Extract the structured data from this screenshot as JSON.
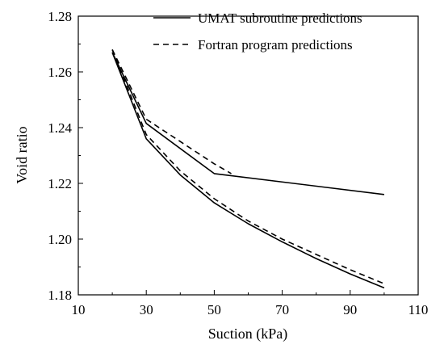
{
  "chart_data": {
    "type": "line",
    "title": "",
    "xlabel": "Suction (kPa)",
    "ylabel": "Void ratio",
    "xlim": [
      10,
      110
    ],
    "ylim": [
      1.18,
      1.28
    ],
    "xticks": [
      10,
      30,
      50,
      70,
      90,
      110
    ],
    "yticks": [
      1.18,
      1.2,
      1.22,
      1.24,
      1.26,
      1.28
    ],
    "xtick_labels": [
      "10",
      "30",
      "50",
      "70",
      "90",
      "110"
    ],
    "ytick_labels": [
      "1.18",
      "1.20",
      "1.22",
      "1.24",
      "1.26",
      "1.28"
    ],
    "grid": false,
    "legend_position": "top-right",
    "series": [
      {
        "name": "UMAT subroutine predictions",
        "style": "solid",
        "color": "#000000",
        "segments": [
          {
            "x": [
              20,
              30,
              50,
              100
            ],
            "y": [
              1.267,
              1.2415,
              1.2235,
              1.216
            ]
          },
          {
            "x": [
              20,
              30,
              40,
              50,
              60,
              70,
              80,
              90,
              100
            ],
            "y": [
              1.267,
              1.236,
              1.223,
              1.213,
              1.2055,
              1.199,
              1.193,
              1.1875,
              1.1825
            ]
          }
        ]
      },
      {
        "name": "Fortran program predictions",
        "style": "dashed",
        "color": "#000000",
        "segments": [
          {
            "x": [
              20,
              30,
              50,
              55
            ],
            "y": [
              1.268,
              1.243,
              1.227,
              1.2235
            ]
          },
          {
            "x": [
              20,
              30,
              40,
              50,
              60,
              70,
              80,
              90,
              100
            ],
            "y": [
              1.268,
              1.2375,
              1.2245,
              1.2145,
              1.2065,
              1.2,
              1.1945,
              1.189,
              1.184
            ]
          }
        ]
      }
    ]
  }
}
